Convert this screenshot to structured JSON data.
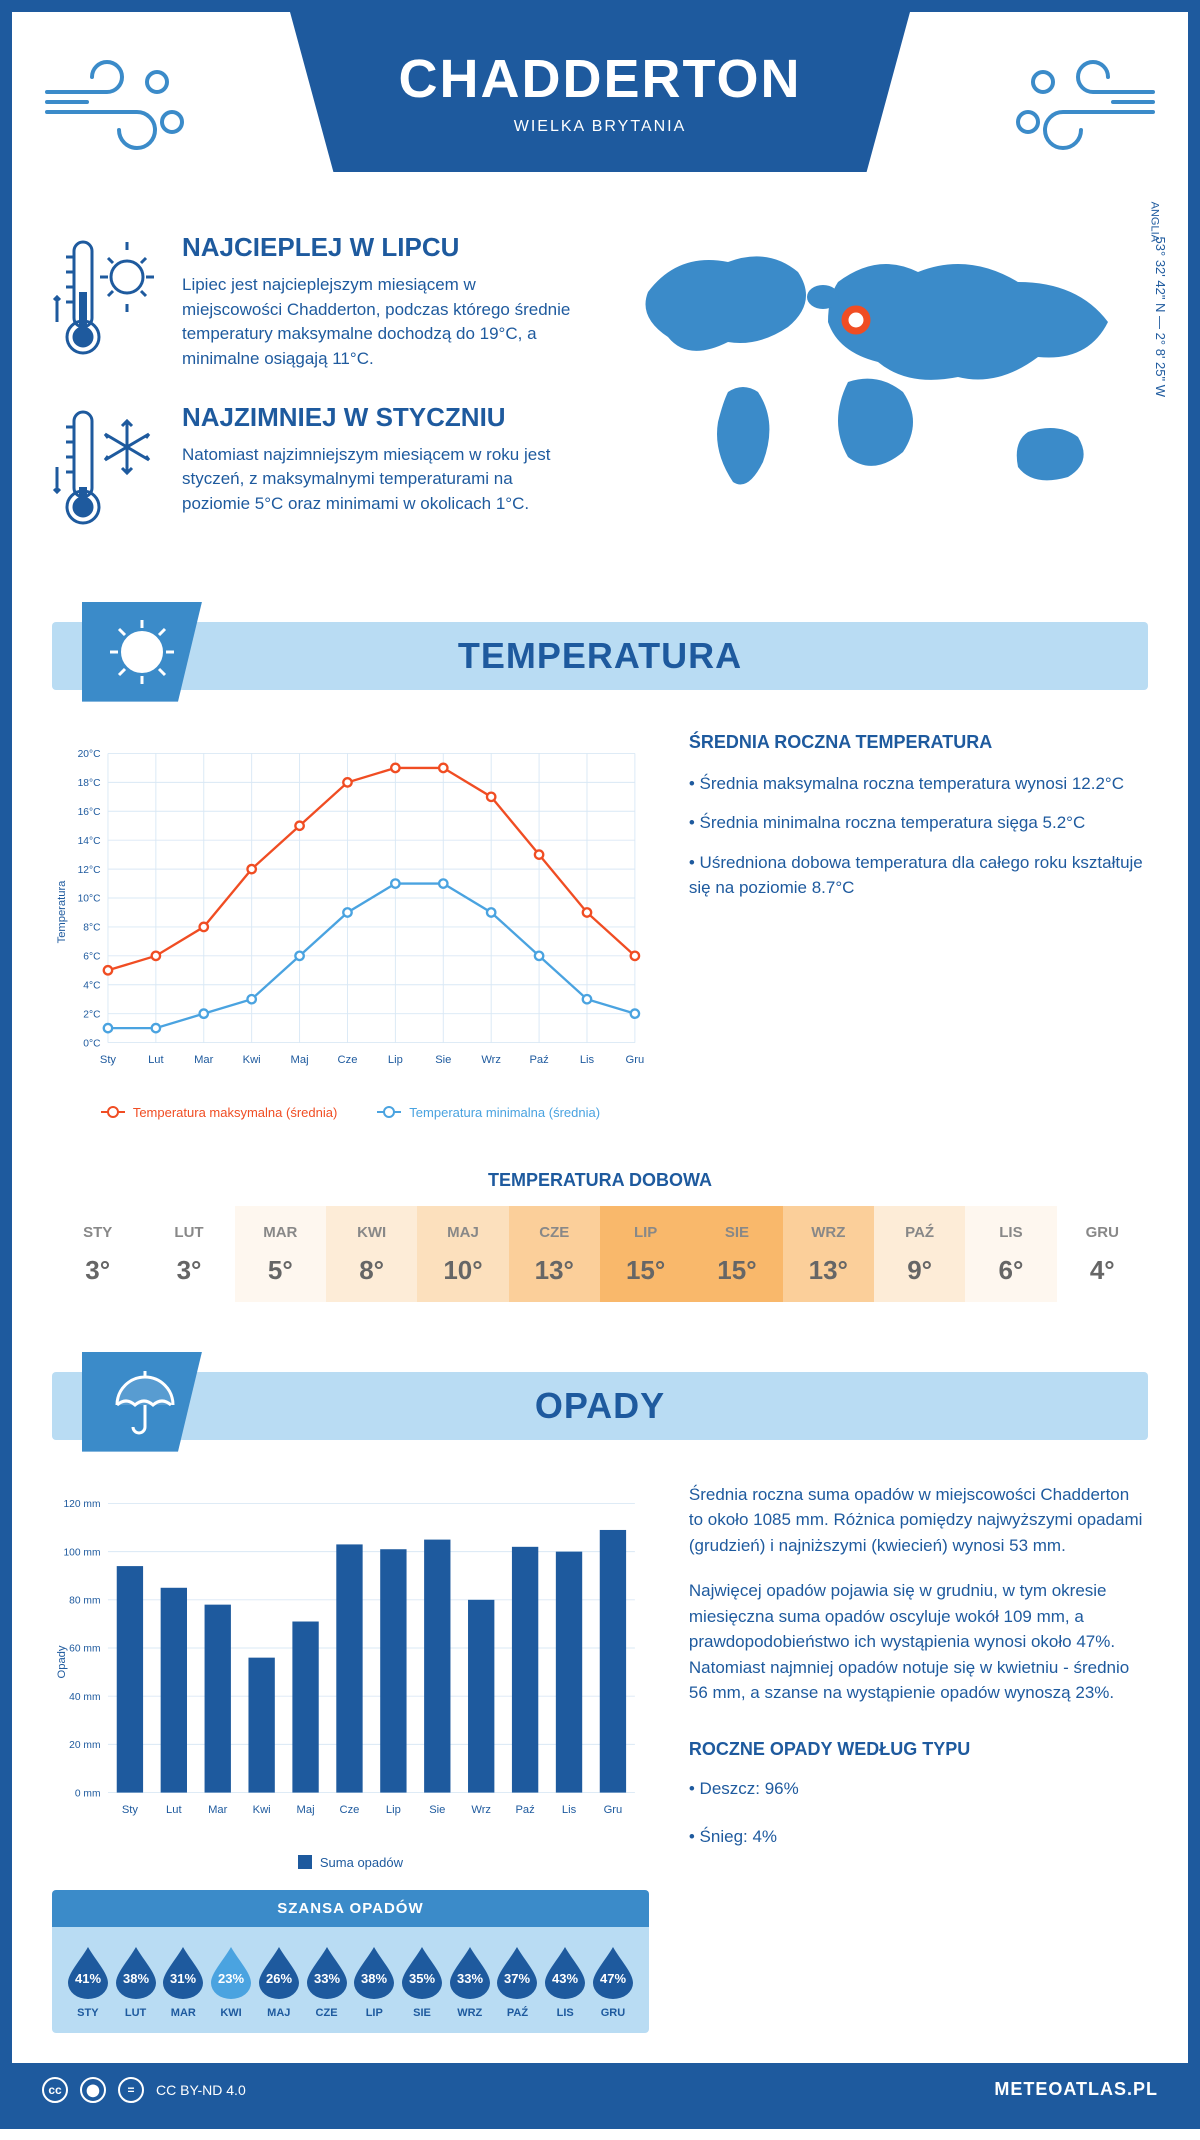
{
  "header": {
    "city": "CHADDERTON",
    "country": "WIELKA BRYTANIA",
    "coords": "53° 32' 42\" N — 2° 8' 25\" W",
    "region": "ANGLIA"
  },
  "facts": {
    "hot": {
      "title": "NAJCIEPLEJ W LIPCU",
      "text": "Lipiec jest najcieplejszym miesiącem w miejscowości Chadderton, podczas którego średnie temperatury maksymalne dochodzą do 19°C, a minimalne osiągają 11°C."
    },
    "cold": {
      "title": "NAJZIMNIEJ W STYCZNIU",
      "text": "Natomiast najzimniejszym miesiącem w roku jest styczeń, z maksymalnymi temperaturami na poziomie 5°C oraz minimami w okolicach 1°C."
    }
  },
  "sections": {
    "temperature": "TEMPERATURA",
    "precipitation": "OPADY"
  },
  "temp_chart": {
    "months": [
      "Sty",
      "Lut",
      "Mar",
      "Kwi",
      "Maj",
      "Cze",
      "Lip",
      "Sie",
      "Wrz",
      "Paź",
      "Lis",
      "Gru"
    ],
    "max": [
      5,
      6,
      8,
      12,
      15,
      18,
      19,
      19,
      17,
      13,
      9,
      6
    ],
    "min": [
      1,
      1,
      2,
      3,
      6,
      9,
      11,
      11,
      9,
      6,
      3,
      2
    ],
    "ylim": [
      0,
      20
    ],
    "ytick_step": 2,
    "ylabel": "Temperatura",
    "max_color": "#f04d23",
    "min_color": "#4aa3e0",
    "grid_color": "#d9e8f5",
    "legend_max": "Temperatura maksymalna (średnia)",
    "legend_min": "Temperatura minimalna (średnia)"
  },
  "temp_text": {
    "heading": "ŚREDNIA ROCZNA TEMPERATURA",
    "b1": "• Średnia maksymalna roczna temperatura wynosi 12.2°C",
    "b2": "• Średnia minimalna roczna temperatura sięga 5.2°C",
    "b3": "• Uśredniona dobowa temperatura dla całego roku kształtuje się na poziomie 8.7°C"
  },
  "daily_temp": {
    "title": "TEMPERATURA DOBOWA",
    "months": [
      "STY",
      "LUT",
      "MAR",
      "KWI",
      "MAJ",
      "CZE",
      "LIP",
      "SIE",
      "WRZ",
      "PAŹ",
      "LIS",
      "GRU"
    ],
    "values": [
      "3°",
      "3°",
      "5°",
      "8°",
      "10°",
      "13°",
      "15°",
      "15°",
      "13°",
      "9°",
      "6°",
      "4°"
    ],
    "colors": [
      "#ffffff",
      "#ffffff",
      "#fef7ef",
      "#fdecd7",
      "#fce0bd",
      "#fbcf9a",
      "#f9b86b",
      "#f9b86b",
      "#fbcf9a",
      "#fdecd7",
      "#fef7ef",
      "#ffffff"
    ]
  },
  "prec_chart": {
    "months": [
      "Sty",
      "Lut",
      "Mar",
      "Kwi",
      "Maj",
      "Cze",
      "Lip",
      "Sie",
      "Wrz",
      "Paź",
      "Lis",
      "Gru"
    ],
    "values": [
      94,
      85,
      78,
      56,
      71,
      103,
      101,
      105,
      80,
      102,
      100,
      109
    ],
    "ylim": [
      0,
      120
    ],
    "ytick_step": 20,
    "ylabel": "Opady",
    "bar_color": "#1e5a9e",
    "grid_color": "#d9e8f5",
    "legend": "Suma opadów"
  },
  "prec_text": {
    "p1": "Średnia roczna suma opadów w miejscowości Chadderton to około 1085 mm. Różnica pomiędzy najwyższymi opadami (grudzień) i najniższymi (kwiecień) wynosi 53 mm.",
    "p2": "Najwięcej opadów pojawia się w grudniu, w tym okresie miesięczna suma opadów oscyluje wokół 109 mm, a prawdopodobieństwo ich wystąpienia wynosi około 47%. Natomiast najmniej opadów notuje się w kwietniu - średnio 56 mm, a szanse na wystąpienie opadów wynoszą 23%."
  },
  "chance": {
    "title": "SZANSA OPADÓW",
    "months": [
      "STY",
      "LUT",
      "MAR",
      "KWI",
      "MAJ",
      "CZE",
      "LIP",
      "SIE",
      "WRZ",
      "PAŹ",
      "LIS",
      "GRU"
    ],
    "values": [
      "41%",
      "38%",
      "31%",
      "23%",
      "26%",
      "33%",
      "38%",
      "35%",
      "33%",
      "37%",
      "43%",
      "47%"
    ],
    "drop_colors": [
      "#1e5a9e",
      "#1e5a9e",
      "#1e5a9e",
      "#4aa3e0",
      "#1e5a9e",
      "#1e5a9e",
      "#1e5a9e",
      "#1e5a9e",
      "#1e5a9e",
      "#1e5a9e",
      "#1e5a9e",
      "#1e5a9e"
    ]
  },
  "prec_type": {
    "heading": "ROCZNE OPADY WEDŁUG TYPU",
    "rain": "• Deszcz: 96%",
    "snow": "• Śnieg: 4%"
  },
  "footer": {
    "license": "CC BY-ND 4.0",
    "site": "METEOATLAS.PL"
  }
}
